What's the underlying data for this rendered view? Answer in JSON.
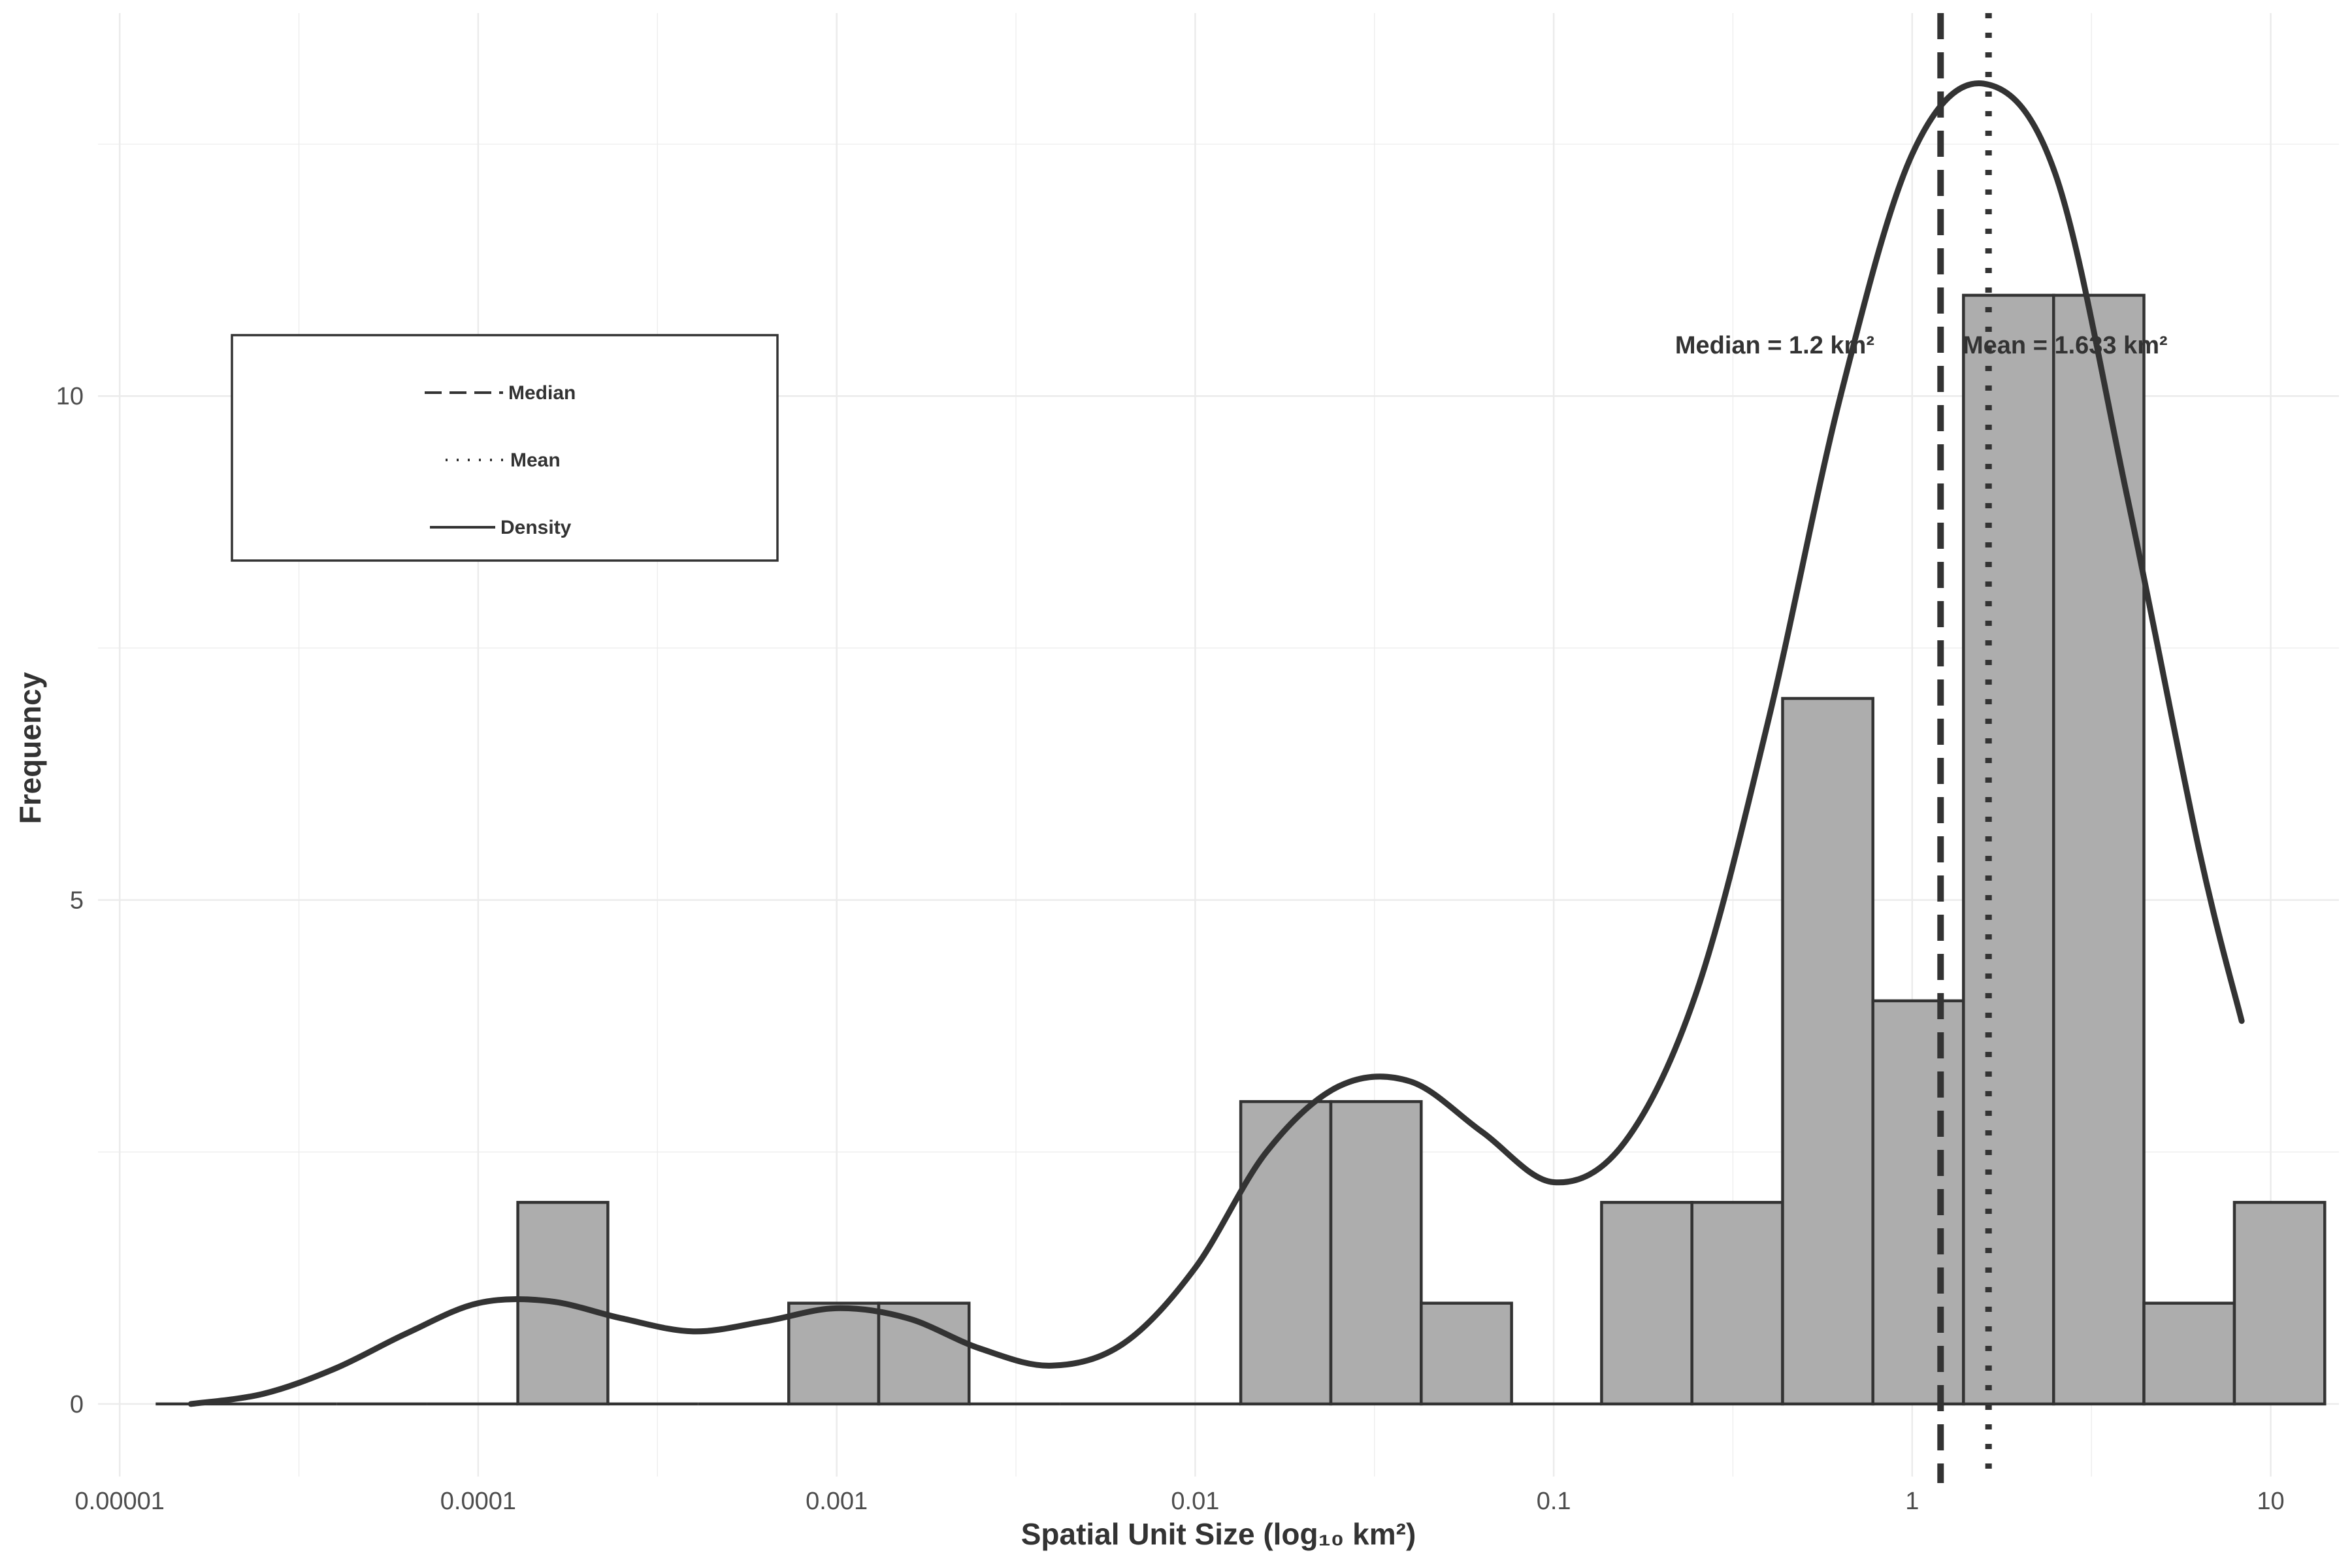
{
  "chart_data": {
    "type": "bar",
    "subtype": "histogram",
    "title": "",
    "xlabel": "Spatial Unit Size (log₁₀ km²)",
    "ylabel": "Frequency",
    "x_scale": "log10",
    "xlim": [
      8.7e-06,
      15.5
    ],
    "ylim": [
      -0.72,
      13.8
    ],
    "x_ticks": [
      1e-05,
      0.0001,
      0.001,
      0.01,
      0.1,
      1,
      10
    ],
    "x_tick_labels": [
      "0.00001",
      "0.0001",
      "0.001",
      "0.01",
      "0.1",
      "1",
      "10"
    ],
    "y_ticks": [
      0,
      5,
      10
    ],
    "y_tick_labels": [
      "0",
      "5",
      "10"
    ],
    "grid": true,
    "bin_edges": [
      1.26e-05,
      2.26e-05,
      4.03e-05,
      7.21e-05,
      0.000129,
      0.00023,
      0.000411,
      0.000735,
      0.00131,
      0.00234,
      0.00419,
      0.00749,
      0.0134,
      0.0239,
      0.0427,
      0.0763,
      0.136,
      0.243,
      0.435,
      0.777,
      1.39,
      2.48,
      4.43,
      7.92,
      14.15
    ],
    "counts": [
      0,
      0,
      0,
      0,
      2,
      0,
      0,
      1,
      1,
      0,
      0,
      0,
      3,
      3,
      1,
      0,
      2,
      2,
      7,
      4,
      11,
      11,
      1,
      2
    ],
    "density_curve": {
      "x": [
        1.58e-05,
        2.51e-05,
        3.98e-05,
        6.31e-05,
        0.0001,
        0.000158,
        0.000251,
        0.000398,
        0.000631,
        0.001,
        0.00158,
        0.00251,
        0.00398,
        0.00631,
        0.01,
        0.0158,
        0.0251,
        0.0398,
        0.0631,
        0.1,
        0.158,
        0.251,
        0.398,
        0.631,
        1,
        1.58,
        2.51,
        3.98,
        6.31,
        8.3
      ],
      "y": [
        0,
        0.1,
        0.35,
        0.7,
        1.0,
        1.02,
        0.85,
        0.72,
        0.82,
        0.95,
        0.85,
        0.55,
        0.38,
        0.6,
        1.35,
        2.5,
        3.15,
        3.2,
        2.7,
        2.2,
        2.6,
        4.1,
        6.8,
        10.0,
        12.4,
        13.1,
        12.2,
        9.0,
        5.5,
        3.8
      ]
    },
    "reference_lines": [
      {
        "name": "Median",
        "value": 1.2,
        "style": "dashed",
        "label": "Median = 1.2 km²"
      },
      {
        "name": "Mean",
        "value": 1.633,
        "style": "dotted",
        "label": "Mean = 1.633 km²"
      }
    ],
    "legend": {
      "position": "top-left",
      "entries": [
        {
          "label": "Median",
          "style": "dashed"
        },
        {
          "label": "Mean",
          "style": "dotted"
        },
        {
          "label": "Density",
          "style": "solid"
        }
      ]
    },
    "colors": {
      "bar_fill": "#adadad",
      "bar_stroke": "#333333",
      "line": "#333333",
      "grid": "#ebebeb",
      "text": "#4d4d4d"
    }
  }
}
